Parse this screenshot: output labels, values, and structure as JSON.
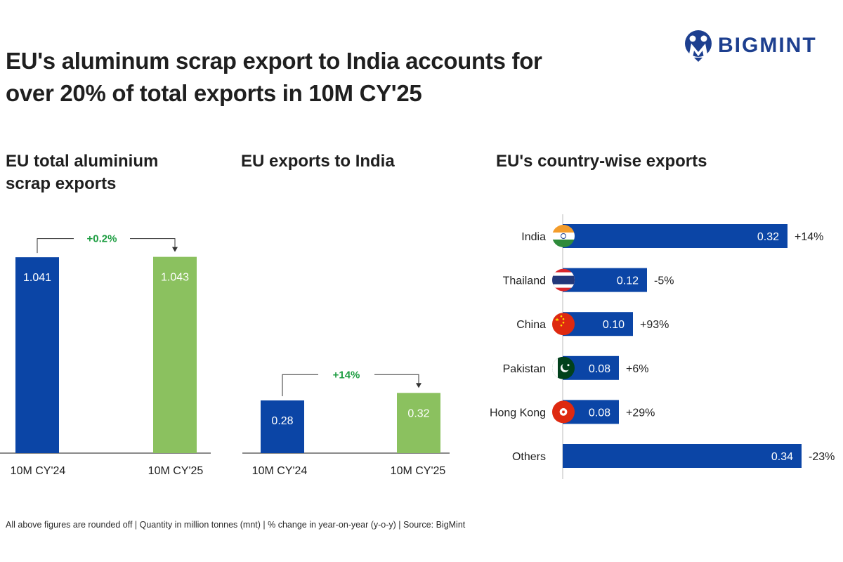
{
  "title": "EU's aluminum scrap export to India accounts for over 20% of total exports in 10M CY'25",
  "logo": {
    "name": "BIGMINT",
    "icon": "bigmint-logo-icon"
  },
  "colors": {
    "blue": "#0b45a6",
    "green": "#8bc15f",
    "positive": "#1f9e43",
    "negative": "#d9262b",
    "axis": "#444444"
  },
  "footer": "All above figures are rounded off | Quantity in million tonnes (mnt) | % change in year-on-year (y-o-y) | Source: BigMint",
  "chart_data": [
    {
      "type": "bar",
      "title": "EU total aluminium scrap exports",
      "categories": [
        "10M CY'24",
        "10M CY'25"
      ],
      "values": [
        1.041,
        1.043
      ],
      "value_labels": [
        "1.041",
        "1.043"
      ],
      "change": "+0.2%",
      "ylim": [
        0,
        1.12
      ]
    },
    {
      "type": "bar",
      "title": "EU exports to India",
      "categories": [
        "10M CY'24",
        "10M CY'25"
      ],
      "values": [
        0.28,
        0.32
      ],
      "value_labels": [
        "0.28",
        "0.32"
      ],
      "change": "+14%",
      "ylim": [
        0,
        1.12
      ]
    },
    {
      "type": "bar",
      "orientation": "horizontal",
      "title": "EU's country-wise exports",
      "categories": [
        "India",
        "Thailand",
        "China",
        "Pakistan",
        "Hong Kong",
        "Others"
      ],
      "values": [
        0.32,
        0.12,
        0.1,
        0.08,
        0.08,
        0.34
      ],
      "value_labels": [
        "0.32",
        "0.12",
        "0.10",
        "0.08",
        "0.08",
        "0.34"
      ],
      "changes": [
        "+14%",
        "-5%",
        "+93%",
        "+6%",
        "+29%",
        "-23%"
      ],
      "flags": [
        "india-flag-icon",
        "thailand-flag-icon",
        "china-flag-icon",
        "pakistan-flag-icon",
        "hong-kong-flag-icon",
        ""
      ],
      "xlim": [
        0,
        0.34
      ]
    }
  ]
}
